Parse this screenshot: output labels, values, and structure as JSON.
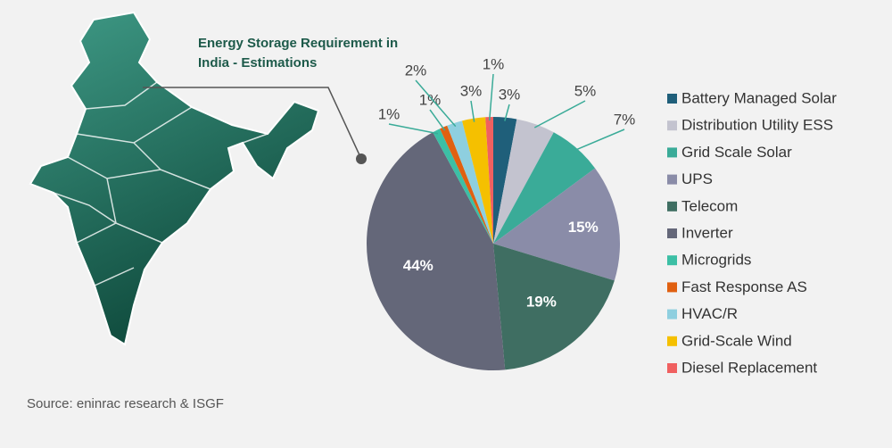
{
  "chart_data": {
    "type": "pie",
    "title": "Energy Storage Requirement in India - Estimations",
    "source": "Source: eninrac research & ISGF",
    "categories": [
      "Battery Managed Solar",
      "Distribution Utility ESS",
      "Grid Scale Solar",
      "UPS",
      "Telecom",
      "Inverter",
      "Microgrids",
      "Fast Response AS",
      "HVAC/R",
      "Grid-Scale Wind",
      "Diesel Replacement"
    ],
    "values": [
      3,
      5,
      7,
      15,
      19,
      44,
      1,
      1,
      2,
      3,
      1
    ],
    "value_labels": [
      "3%",
      "5%",
      "7%",
      "15%",
      "19%",
      "44%",
      "1%",
      "1%",
      "2%",
      "3%",
      "1%"
    ],
    "colors": [
      "#1f5f7a",
      "#c3c3cf",
      "#3aab98",
      "#8a8ca8",
      "#3f6e62",
      "#646779",
      "#3cbfa5",
      "#e06010",
      "#8ecfdf",
      "#f5c000",
      "#f06060"
    ]
  }
}
